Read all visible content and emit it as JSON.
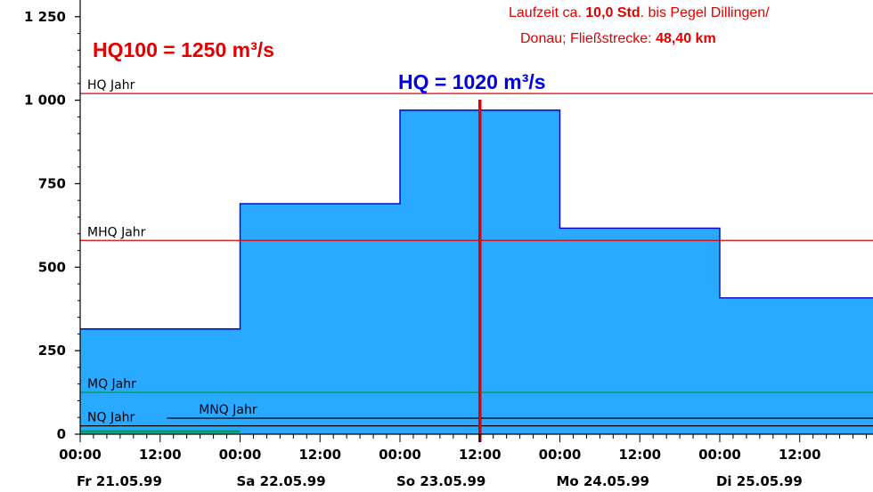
{
  "colors": {
    "area_fill": "#29a9ff",
    "area_stroke": "#0000c8",
    "hq_line": "#e00000",
    "mhq_line": "#e00000",
    "mq_line": "#00a050",
    "mnq_line": "#000000",
    "nq_line": "#000000",
    "marker": "#e00000",
    "hq100_text": "#e00000",
    "hq_text": "#0000e0",
    "info_text": "#e00000"
  },
  "annotations": {
    "hq100": "HQ100 = 1250 m³/s",
    "hq_marker": "HQ = 1020 m³/s",
    "info_line1_pre": "Laufzeit ca. ",
    "info_line1_bold": "10,0 Std",
    "info_line1_post": ". bis Pegel Dillingen/",
    "info_line2_pre": "Donau; Fließstrecke: ",
    "info_line2_bold": "48,40 km"
  },
  "chart_data": {
    "type": "area",
    "step": true,
    "ylim": [
      0,
      1300
    ],
    "yticks": [
      0,
      250,
      500,
      750,
      1000,
      1250
    ],
    "ytick_labels": [
      "0",
      "250",
      "500",
      "750",
      "1 000",
      "1 250"
    ],
    "x_unit": "hours since Fr 21.05.99 00:00",
    "xlim": [
      0,
      119
    ],
    "xticks": [
      0,
      12,
      24,
      36,
      48,
      60,
      72,
      84,
      96,
      108
    ],
    "xtick_labels": [
      "00:00",
      "12:00",
      "00:00",
      "12:00",
      "00:00",
      "12:00",
      "00:00",
      "12:00",
      "00:00",
      "12:00"
    ],
    "date_labels": [
      {
        "x": 0,
        "label": "Fr 21.05.99"
      },
      {
        "x": 24,
        "label": "Sa 22.05.99"
      },
      {
        "x": 48,
        "label": "So 23.05.99"
      },
      {
        "x": 72,
        "label": "Mo 24.05.99"
      },
      {
        "x": 96,
        "label": "Di 25.05.99"
      }
    ],
    "series": [
      {
        "x": [
          0,
          24,
          48,
          72,
          96,
          119
        ],
        "values": [
          315,
          690,
          970,
          617,
          408,
          408
        ]
      }
    ],
    "reference_lines": [
      {
        "name": "HQ Jahr",
        "value": 1020,
        "color_key": "hq_line",
        "x_start": 0
      },
      {
        "name": "MHQ Jahr",
        "value": 580,
        "color_key": "mhq_line",
        "x_start": 0
      },
      {
        "name": "MQ Jahr",
        "value": 125,
        "color_key": "mq_line",
        "x_start": 0
      },
      {
        "name": "MNQ Jahr",
        "value": 48,
        "color_key": "mnq_line",
        "x_start": 13
      },
      {
        "name": "NQ Jahr",
        "value": 25,
        "color_key": "nq_line",
        "x_start": 0
      }
    ],
    "low_segment": {
      "x_start": 0,
      "x_end": 24,
      "value": 8,
      "color": "#00a050"
    },
    "marker_x": 60
  }
}
